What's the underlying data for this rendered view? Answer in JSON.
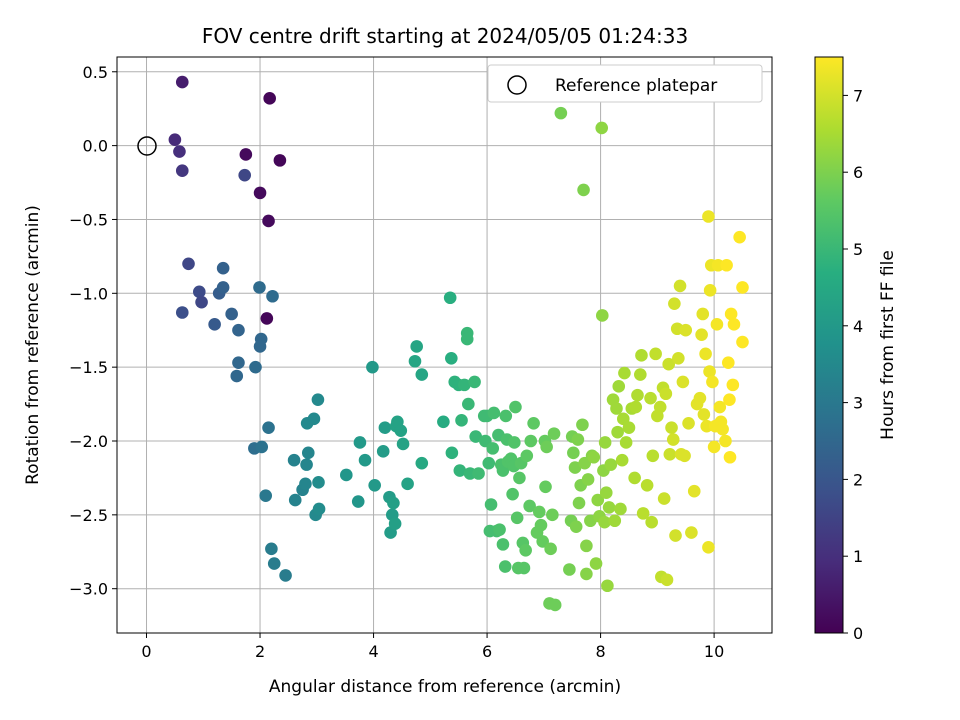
{
  "chart_data": {
    "type": "scatter",
    "title": "FOV centre drift starting at 2024/05/05 01:24:33",
    "xlabel": "Angular distance from reference (arcmin)",
    "ylabel": "Rotation from reference (arcmin)",
    "colorbar_label": "Hours from first FF file",
    "xlim": [
      -0.52,
      11.02
    ],
    "ylim": [
      -3.3,
      0.6
    ],
    "x_ticks": [
      0,
      2,
      4,
      6,
      8,
      10
    ],
    "x_tick_labels": [
      "0",
      "2",
      "4",
      "6",
      "8",
      "10"
    ],
    "y_ticks": [
      0.5,
      0.0,
      -0.5,
      -1.0,
      -1.5,
      -2.0,
      -2.5,
      -3.0
    ],
    "y_tick_labels": [
      "0.5",
      "0.0",
      "−0.5",
      "−1.0",
      "−1.5",
      "−2.0",
      "−2.5",
      "−3.0"
    ],
    "c_ticks": [
      0,
      1,
      2,
      3,
      4,
      5,
      6,
      7
    ],
    "c_tick_labels": [
      "0",
      "1",
      "2",
      "3",
      "4",
      "5",
      "6",
      "7"
    ],
    "clim": [
      0,
      7.5
    ],
    "colormap": "viridis",
    "grid": true,
    "legend": {
      "placement": "top-right",
      "entries": [
        {
          "label": "Reference platepar",
          "marker": "open-circle"
        }
      ]
    },
    "reference_point": [
      0,
      0
    ],
    "points": [
      [
        0.63,
        0.43,
        0.6
      ],
      [
        2.17,
        0.32,
        0.1
      ],
      [
        0.5,
        0.04,
        0.9
      ],
      [
        0.58,
        -0.04,
        1.0
      ],
      [
        0.63,
        -0.17,
        1.2
      ],
      [
        1.75,
        -0.06,
        0.2
      ],
      [
        2.35,
        -0.1,
        0.1
      ],
      [
        1.73,
        -0.2,
        1.6
      ],
      [
        2.0,
        -0.32,
        0.2
      ],
      [
        2.15,
        -0.51,
        0.2
      ],
      [
        2.12,
        -1.17,
        0.1
      ],
      [
        0.74,
        -0.8,
        1.6
      ],
      [
        0.93,
        -0.99,
        1.7
      ],
      [
        0.97,
        -1.06,
        1.6
      ],
      [
        0.63,
        -1.13,
        1.8
      ],
      [
        1.2,
        -1.21,
        2.1
      ],
      [
        1.28,
        -1.0,
        2.2
      ],
      [
        1.35,
        -0.96,
        2.3
      ],
      [
        1.35,
        -0.83,
        2.3
      ],
      [
        1.5,
        -1.14,
        2.3
      ],
      [
        1.62,
        -1.25,
        2.4
      ],
      [
        1.62,
        -1.47,
        2.5
      ],
      [
        1.59,
        -1.56,
        2.5
      ],
      [
        1.99,
        -0.96,
        2.6
      ],
      [
        2.22,
        -1.02,
        2.6
      ],
      [
        2.02,
        -1.31,
        2.5
      ],
      [
        2.0,
        -1.36,
        2.5
      ],
      [
        1.92,
        -1.5,
        2.6
      ],
      [
        1.9,
        -2.05,
        2.7
      ],
      [
        2.03,
        -2.04,
        2.8
      ],
      [
        2.15,
        -1.91,
        2.8
      ],
      [
        2.1,
        -2.37,
        3.0
      ],
      [
        2.2,
        -2.73,
        3.1
      ],
      [
        2.25,
        -2.83,
        3.1
      ],
      [
        2.45,
        -2.91,
        3.1
      ],
      [
        2.6,
        -2.13,
        3.3
      ],
      [
        2.62,
        -2.4,
        3.3
      ],
      [
        2.75,
        -2.33,
        3.3
      ],
      [
        2.8,
        -2.29,
        3.4
      ],
      [
        2.82,
        -2.16,
        3.4
      ],
      [
        2.85,
        -2.08,
        3.4
      ],
      [
        2.83,
        -1.88,
        3.5
      ],
      [
        2.95,
        -1.85,
        3.5
      ],
      [
        3.02,
        -1.72,
        3.5
      ],
      [
        2.98,
        -2.5,
        3.5
      ],
      [
        3.04,
        -2.46,
        3.6
      ],
      [
        3.03,
        -2.28,
        3.6
      ],
      [
        3.52,
        -2.23,
        3.9
      ],
      [
        3.73,
        -2.41,
        3.9
      ],
      [
        3.76,
        -2.01,
        4.0
      ],
      [
        3.85,
        -2.13,
        4.0
      ],
      [
        3.98,
        -1.5,
        4.0
      ],
      [
        4.02,
        -2.3,
        4.0
      ],
      [
        4.17,
        -2.07,
        4.1
      ],
      [
        4.2,
        -1.91,
        4.1
      ],
      [
        4.28,
        -2.38,
        4.1
      ],
      [
        4.33,
        -2.5,
        4.1
      ],
      [
        4.3,
        -2.62,
        4.1
      ],
      [
        4.38,
        -2.56,
        4.2
      ],
      [
        4.35,
        -2.42,
        4.2
      ],
      [
        4.4,
        -1.9,
        4.3
      ],
      [
        4.42,
        -1.87,
        4.3
      ],
      [
        4.48,
        -1.93,
        4.3
      ],
      [
        4.52,
        -2.02,
        4.3
      ],
      [
        4.6,
        -2.29,
        4.3
      ],
      [
        4.73,
        -1.46,
        4.4
      ],
      [
        4.76,
        -1.36,
        4.4
      ],
      [
        4.85,
        -1.55,
        4.4
      ],
      [
        4.85,
        -2.15,
        4.5
      ],
      [
        5.23,
        -1.87,
        4.6
      ],
      [
        5.35,
        -1.03,
        4.7
      ],
      [
        5.37,
        -1.44,
        4.7
      ],
      [
        5.38,
        -2.08,
        4.8
      ],
      [
        5.43,
        -1.6,
        4.8
      ],
      [
        5.5,
        -1.62,
        4.8
      ],
      [
        5.52,
        -2.2,
        4.9
      ],
      [
        5.55,
        -1.86,
        4.9
      ],
      [
        5.6,
        -1.62,
        4.9
      ],
      [
        5.65,
        -1.27,
        5.0
      ],
      [
        5.65,
        -1.31,
        5.0
      ],
      [
        5.67,
        -1.75,
        5.0
      ],
      [
        5.7,
        -2.22,
        5.0
      ],
      [
        5.78,
        -1.6,
        5.0
      ],
      [
        5.8,
        -1.97,
        5.0
      ],
      [
        5.85,
        -2.22,
        5.1
      ],
      [
        5.95,
        -1.83,
        5.1
      ],
      [
        5.97,
        -2.0,
        5.1
      ],
      [
        6.0,
        -1.83,
        5.1
      ],
      [
        6.03,
        -2.15,
        5.1
      ],
      [
        6.05,
        -2.61,
        5.2
      ],
      [
        6.07,
        -2.43,
        5.2
      ],
      [
        6.1,
        -2.05,
        5.2
      ],
      [
        6.12,
        -1.81,
        5.2
      ],
      [
        6.17,
        -2.61,
        5.2
      ],
      [
        6.2,
        -1.96,
        5.2
      ],
      [
        6.22,
        -2.6,
        5.3
      ],
      [
        6.25,
        -2.16,
        5.3
      ],
      [
        6.28,
        -2.2,
        5.3
      ],
      [
        6.28,
        -2.7,
        5.3
      ],
      [
        6.32,
        -2.85,
        5.3
      ],
      [
        6.33,
        -1.83,
        5.3
      ],
      [
        6.35,
        -1.99,
        5.3
      ],
      [
        6.37,
        -2.14,
        5.4
      ],
      [
        6.42,
        -2.12,
        5.4
      ],
      [
        6.45,
        -2.36,
        5.4
      ],
      [
        6.47,
        -2.17,
        5.4
      ],
      [
        6.48,
        -2.01,
        5.4
      ],
      [
        6.5,
        -1.77,
        5.4
      ],
      [
        6.53,
        -2.52,
        5.5
      ],
      [
        6.55,
        -2.86,
        5.5
      ],
      [
        6.57,
        -2.25,
        5.5
      ],
      [
        6.6,
        -2.15,
        5.5
      ],
      [
        6.63,
        -2.69,
        5.5
      ],
      [
        6.65,
        -2.86,
        5.5
      ],
      [
        6.68,
        -2.74,
        5.6
      ],
      [
        6.7,
        -2.1,
        5.6
      ],
      [
        6.75,
        -2.44,
        5.6
      ],
      [
        6.77,
        -2.0,
        5.6
      ],
      [
        6.82,
        -1.88,
        5.6
      ],
      [
        6.88,
        -2.62,
        5.7
      ],
      [
        6.92,
        -2.48,
        5.7
      ],
      [
        6.95,
        -2.57,
        5.7
      ],
      [
        6.98,
        -2.68,
        5.7
      ],
      [
        7.02,
        -2.0,
        5.7
      ],
      [
        7.03,
        -2.31,
        5.7
      ],
      [
        7.05,
        -2.04,
        5.8
      ],
      [
        7.1,
        -3.1,
        5.8
      ],
      [
        7.12,
        -2.73,
        5.8
      ],
      [
        7.15,
        -2.5,
        5.8
      ],
      [
        7.18,
        -1.95,
        5.8
      ],
      [
        7.2,
        -3.11,
        5.8
      ],
      [
        7.3,
        0.22,
        5.9
      ],
      [
        7.45,
        -2.87,
        5.9
      ],
      [
        7.48,
        -2.54,
        5.9
      ],
      [
        7.5,
        -1.97,
        5.9
      ],
      [
        7.52,
        -2.08,
        5.9
      ],
      [
        7.55,
        -2.18,
        6.0
      ],
      [
        7.57,
        -2.58,
        6.0
      ],
      [
        7.6,
        -1.99,
        6.0
      ],
      [
        7.62,
        -2.42,
        6.0
      ],
      [
        7.65,
        -2.3,
        6.0
      ],
      [
        7.68,
        -1.89,
        6.0
      ],
      [
        7.7,
        -0.3,
        6.0
      ],
      [
        7.72,
        -2.15,
        6.1
      ],
      [
        7.75,
        -2.71,
        6.1
      ],
      [
        7.75,
        -2.9,
        6.1
      ],
      [
        7.78,
        -2.26,
        6.1
      ],
      [
        7.82,
        -2.54,
        6.1
      ],
      [
        7.85,
        -2.1,
        6.1
      ],
      [
        7.88,
        -2.11,
        6.2
      ],
      [
        7.92,
        -2.83,
        6.2
      ],
      [
        7.95,
        -2.4,
        6.2
      ],
      [
        7.98,
        -2.51,
        6.2
      ],
      [
        8.02,
        0.12,
        6.2
      ],
      [
        8.03,
        -1.15,
        6.2
      ],
      [
        8.05,
        -2.2,
        6.2
      ],
      [
        8.07,
        -2.55,
        6.3
      ],
      [
        8.08,
        -2.01,
        6.3
      ],
      [
        8.1,
        -2.35,
        6.3
      ],
      [
        8.12,
        -2.98,
        6.3
      ],
      [
        8.15,
        -2.45,
        6.3
      ],
      [
        8.18,
        -2.16,
        6.3
      ],
      [
        8.22,
        -1.72,
        6.4
      ],
      [
        8.25,
        -2.54,
        6.4
      ],
      [
        8.28,
        -1.78,
        6.4
      ],
      [
        8.3,
        -1.94,
        6.4
      ],
      [
        8.32,
        -1.63,
        6.4
      ],
      [
        8.35,
        -2.46,
        6.4
      ],
      [
        8.38,
        -2.13,
        6.5
      ],
      [
        8.4,
        -1.85,
        6.5
      ],
      [
        8.42,
        -1.54,
        6.5
      ],
      [
        8.45,
        -2.01,
        6.5
      ],
      [
        8.5,
        -1.91,
        6.5
      ],
      [
        8.55,
        -1.78,
        6.5
      ],
      [
        8.6,
        -2.25,
        6.6
      ],
      [
        8.62,
        -1.77,
        6.6
      ],
      [
        8.65,
        -1.69,
        6.6
      ],
      [
        8.7,
        -1.55,
        6.6
      ],
      [
        8.72,
        -1.42,
        6.6
      ],
      [
        8.75,
        -2.49,
        6.7
      ],
      [
        8.82,
        -2.3,
        6.7
      ],
      [
        8.88,
        -1.71,
        6.7
      ],
      [
        8.9,
        -2.55,
        6.7
      ],
      [
        8.92,
        -2.1,
        6.7
      ],
      [
        8.97,
        -1.41,
        6.8
      ],
      [
        9.0,
        -1.83,
        6.8
      ],
      [
        9.05,
        -1.77,
        6.8
      ],
      [
        9.07,
        -2.92,
        6.8
      ],
      [
        9.1,
        -1.64,
        6.8
      ],
      [
        9.12,
        -2.39,
        6.9
      ],
      [
        9.15,
        -1.68,
        6.9
      ],
      [
        9.17,
        -2.94,
        6.9
      ],
      [
        9.2,
        -1.48,
        6.9
      ],
      [
        9.22,
        -2.09,
        6.9
      ],
      [
        9.25,
        -1.91,
        6.9
      ],
      [
        9.28,
        -1.99,
        7.0
      ],
      [
        9.3,
        -1.07,
        7.0
      ],
      [
        9.32,
        -2.64,
        7.0
      ],
      [
        9.35,
        -1.24,
        7.0
      ],
      [
        9.37,
        -1.44,
        7.0
      ],
      [
        9.4,
        -0.95,
        7.0
      ],
      [
        9.42,
        -2.09,
        7.1
      ],
      [
        9.45,
        -1.6,
        7.1
      ],
      [
        9.48,
        -2.1,
        7.1
      ],
      [
        9.5,
        -1.25,
        7.1
      ],
      [
        9.55,
        -1.88,
        7.1
      ],
      [
        9.6,
        -2.62,
        7.1
      ],
      [
        9.65,
        -2.34,
        7.2
      ],
      [
        9.7,
        -1.75,
        7.2
      ],
      [
        9.75,
        -1.71,
        7.2
      ],
      [
        9.78,
        -1.28,
        7.2
      ],
      [
        9.8,
        -1.14,
        7.2
      ],
      [
        9.82,
        -1.82,
        7.2
      ],
      [
        9.85,
        -1.41,
        7.3
      ],
      [
        9.87,
        -1.9,
        7.3
      ],
      [
        9.9,
        -0.48,
        7.3
      ],
      [
        9.9,
        -2.72,
        7.3
      ],
      [
        9.92,
        -1.53,
        7.3
      ],
      [
        9.93,
        -0.98,
        7.3
      ],
      [
        9.95,
        -0.81,
        7.3
      ],
      [
        9.97,
        -1.6,
        7.4
      ],
      [
        10.0,
        -2.04,
        7.4
      ],
      [
        10.02,
        -1.9,
        7.4
      ],
      [
        10.05,
        -1.21,
        7.4
      ],
      [
        10.07,
        -0.81,
        7.4
      ],
      [
        10.1,
        -1.77,
        7.4
      ],
      [
        10.12,
        -1.87,
        7.4
      ],
      [
        10.15,
        -1.92,
        7.4
      ],
      [
        10.2,
        -2.0,
        7.4
      ],
      [
        10.22,
        -0.81,
        7.5
      ],
      [
        10.25,
        -1.47,
        7.5
      ],
      [
        10.27,
        -1.72,
        7.5
      ],
      [
        10.28,
        -2.11,
        7.5
      ],
      [
        10.3,
        -1.14,
        7.5
      ],
      [
        10.33,
        -1.62,
        7.5
      ],
      [
        10.35,
        -1.21,
        7.5
      ],
      [
        10.45,
        -0.62,
        7.5
      ],
      [
        10.5,
        -0.96,
        7.5
      ],
      [
        10.5,
        -1.33,
        7.5
      ]
    ]
  }
}
